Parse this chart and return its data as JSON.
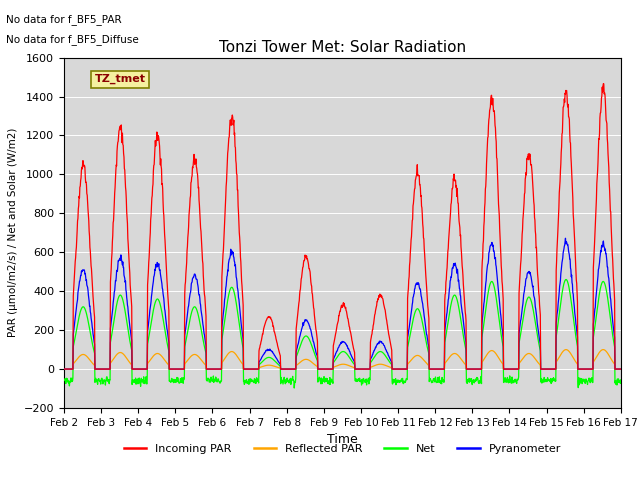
{
  "title": "Tonzi Tower Met: Solar Radiation",
  "xlabel": "Time",
  "ylabel": "PAR (μmol/m2/s) / Net and Solar (W/m2)",
  "ylim": [
    -200,
    1600
  ],
  "yticks": [
    -200,
    0,
    200,
    400,
    600,
    800,
    1000,
    1200,
    1400,
    1600
  ],
  "annotation1": "No data for f_BF5_PAR",
  "annotation2": "No data for f_BF5_Diffuse",
  "legend_label": "TZ_tmet",
  "legend_entries": [
    "Incoming PAR",
    "Reflected PAR",
    "Net",
    "Pyranometer"
  ],
  "line_colors": {
    "incoming": "red",
    "reflected": "orange",
    "net": "lime",
    "pyranometer": "blue"
  },
  "n_days": 15,
  "plot_bg": "#d8d8d8",
  "day_peaks_incoming": [
    1050,
    1250,
    1200,
    1080,
    1300,
    270,
    580,
    330,
    380,
    1010,
    970,
    1400,
    1100,
    1420,
    1430
  ],
  "day_peaks_pyrano": [
    510,
    570,
    540,
    480,
    600,
    100,
    250,
    140,
    140,
    440,
    540,
    640,
    500,
    650,
    640
  ],
  "day_peaks_net": [
    320,
    380,
    360,
    320,
    420,
    60,
    170,
    90,
    90,
    310,
    380,
    450,
    370,
    460,
    450
  ],
  "day_peaks_reflected": [
    75,
    85,
    80,
    75,
    90,
    20,
    50,
    25,
    25,
    70,
    80,
    95,
    80,
    100,
    100
  ],
  "night_net_value": -60
}
